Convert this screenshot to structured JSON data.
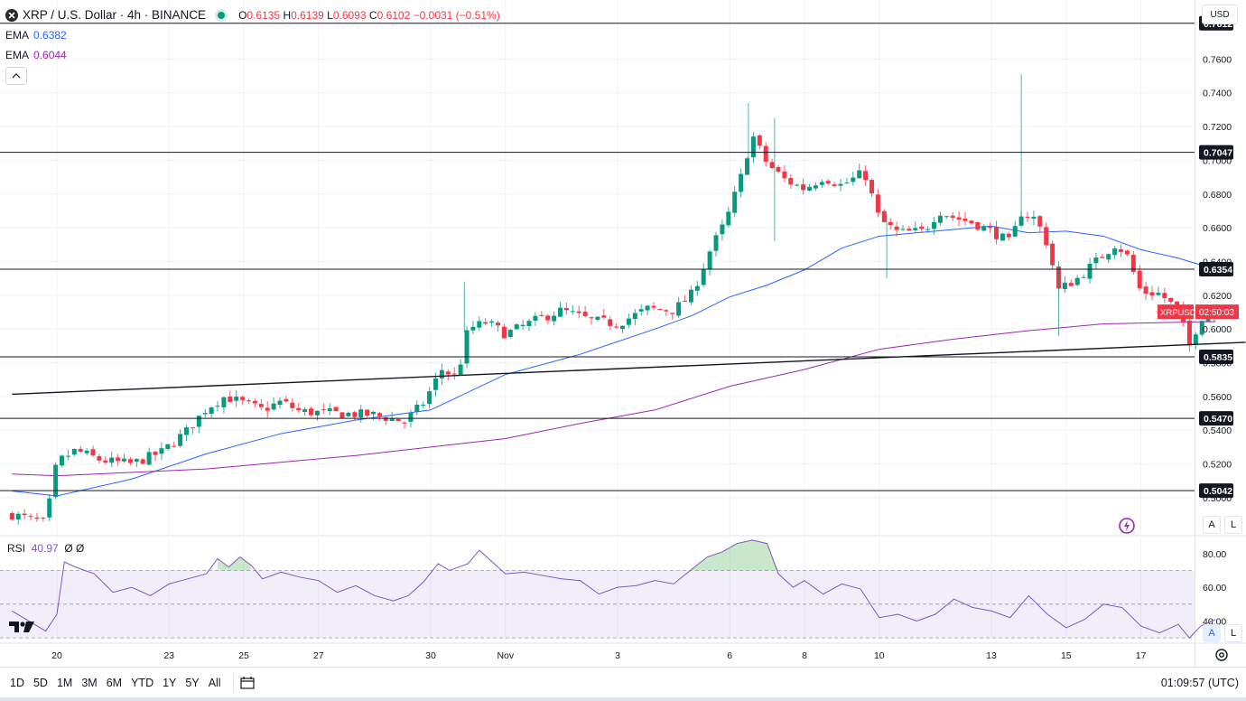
{
  "legend": {
    "symbol": "XRP / U.S. Dollar · 4h · BINANCE",
    "ohlc": {
      "o_label": "O",
      "o": "0.6135",
      "h_label": "H",
      "h": "0.6139",
      "l_label": "L",
      "l": "0.6093",
      "c_label": "C",
      "c": "0.6102",
      "change": "−0.0031 (−0.51%)"
    },
    "ema1": {
      "label": "EMA",
      "value": "0.6382"
    },
    "ema2": {
      "label": "EMA",
      "value": "0.6044"
    }
  },
  "currency": "USD",
  "rsi": {
    "label": "RSI",
    "value": "40.97",
    "extra": "Ø Ø"
  },
  "time_ranges": [
    "1D",
    "5D",
    "1M",
    "3M",
    "6M",
    "YTD",
    "1Y",
    "5Y",
    "All"
  ],
  "clock": "01:09:57 (UTC)",
  "axis_buttons": {
    "auto": "A",
    "log": "L"
  },
  "chart_data": {
    "type": "candlestick",
    "title": "XRP / U.S. Dollar · 4h · BINANCE",
    "ylim": [
      0.478,
      0.795
    ],
    "y_ticks": [
      "0.5000",
      "0.5200",
      "0.5400",
      "0.5600",
      "0.5800",
      "0.6000",
      "0.6200",
      "0.6400",
      "0.6600",
      "0.6800",
      "0.7000",
      "0.7200",
      "0.7400",
      "0.7600"
    ],
    "x_ticks": [
      {
        "label": "20",
        "day": 0
      },
      {
        "label": "23",
        "day": 3
      },
      {
        "label": "25",
        "day": 5
      },
      {
        "label": "27",
        "day": 7
      },
      {
        "label": "30",
        "day": 10
      },
      {
        "label": "Nov",
        "day": 12
      },
      {
        "label": "3",
        "day": 15
      },
      {
        "label": "6",
        "day": 18
      },
      {
        "label": "8",
        "day": 20
      },
      {
        "label": "10",
        "day": 22
      },
      {
        "label": "13",
        "day": 25
      },
      {
        "label": "15",
        "day": 27
      },
      {
        "label": "17",
        "day": 29
      }
    ],
    "horizontal_levels": [
      "0.7812",
      "0.7047",
      "0.6354",
      "0.5835",
      "0.5470",
      "0.5042"
    ],
    "trendline": {
      "start_day": -1.2,
      "start_price": 0.5613,
      "end_day": 31.8,
      "end_price": 0.5921
    },
    "current": {
      "symbol": "XRPUSD",
      "price": 0.6102,
      "countdown": "02:50:03"
    },
    "candle_anchors": [
      [
        -1.2,
        0.49
      ],
      [
        -0.3,
        0.485
      ],
      [
        0.0,
        0.521
      ],
      [
        0.5,
        0.528
      ],
      [
        1.2,
        0.522
      ],
      [
        2.0,
        0.52
      ],
      [
        2.8,
        0.527
      ],
      [
        3.5,
        0.54
      ],
      [
        4.0,
        0.553
      ],
      [
        4.5,
        0.56
      ],
      [
        5.0,
        0.556
      ],
      [
        5.5,
        0.552
      ],
      [
        6.0,
        0.557
      ],
      [
        6.5,
        0.551
      ],
      [
        7.5,
        0.55
      ],
      [
        8.5,
        0.549
      ],
      [
        9.3,
        0.545
      ],
      [
        9.8,
        0.556
      ],
      [
        10.3,
        0.576
      ],
      [
        10.7,
        0.571
      ],
      [
        11.0,
        0.6
      ],
      [
        11.5,
        0.604
      ],
      [
        12.0,
        0.597
      ],
      [
        12.8,
        0.605
      ],
      [
        13.5,
        0.611
      ],
      [
        14.3,
        0.605
      ],
      [
        15.0,
        0.603
      ],
      [
        15.8,
        0.612
      ],
      [
        16.5,
        0.611
      ],
      [
        17.0,
        0.621
      ],
      [
        17.5,
        0.648
      ],
      [
        17.9,
        0.664
      ],
      [
        18.3,
        0.69
      ],
      [
        18.6,
        0.715
      ],
      [
        19.0,
        0.698
      ],
      [
        19.5,
        0.688
      ],
      [
        20.0,
        0.683
      ],
      [
        20.5,
        0.69
      ],
      [
        21.0,
        0.685
      ],
      [
        21.6,
        0.693
      ],
      [
        22.0,
        0.665
      ],
      [
        22.5,
        0.657
      ],
      [
        23.2,
        0.658
      ],
      [
        23.6,
        0.67
      ],
      [
        24.0,
        0.666
      ],
      [
        24.5,
        0.663
      ],
      [
        25.0,
        0.658
      ],
      [
        25.5,
        0.651
      ],
      [
        25.8,
        0.669
      ],
      [
        26.2,
        0.665
      ],
      [
        26.5,
        0.65
      ],
      [
        26.8,
        0.623
      ],
      [
        27.3,
        0.63
      ],
      [
        27.8,
        0.64
      ],
      [
        28.3,
        0.65
      ],
      [
        28.6,
        0.645
      ],
      [
        29.0,
        0.622
      ],
      [
        29.5,
        0.621
      ],
      [
        30.0,
        0.611
      ],
      [
        30.3,
        0.59
      ],
      [
        30.6,
        0.607
      ],
      [
        31.0,
        0.6102
      ]
    ],
    "series": [
      {
        "name": "EMA (blue)",
        "color": "#2962ff",
        "points": [
          [
            -1.2,
            0.504
          ],
          [
            0,
            0.501
          ],
          [
            2,
            0.511
          ],
          [
            4,
            0.526
          ],
          [
            6,
            0.538
          ],
          [
            8,
            0.546
          ],
          [
            10,
            0.552
          ],
          [
            12,
            0.573
          ],
          [
            14,
            0.585
          ],
          [
            16,
            0.6
          ],
          [
            17,
            0.608
          ],
          [
            18,
            0.619
          ],
          [
            19,
            0.626
          ],
          [
            20,
            0.635
          ],
          [
            21,
            0.648
          ],
          [
            22,
            0.655
          ],
          [
            24,
            0.659
          ],
          [
            25,
            0.661
          ],
          [
            26,
            0.657
          ],
          [
            27,
            0.658
          ],
          [
            28,
            0.655
          ],
          [
            29,
            0.647
          ],
          [
            30,
            0.642
          ],
          [
            30.6,
            0.638
          ],
          [
            31.0,
            0.638
          ]
        ]
      },
      {
        "name": "EMA (purple)",
        "color": "#9c27b0",
        "points": [
          [
            -1.2,
            0.514
          ],
          [
            0,
            0.513
          ],
          [
            4,
            0.517
          ],
          [
            8,
            0.525
          ],
          [
            12,
            0.535
          ],
          [
            14,
            0.544
          ],
          [
            16,
            0.552
          ],
          [
            18,
            0.566
          ],
          [
            20,
            0.576
          ],
          [
            22,
            0.588
          ],
          [
            24,
            0.594
          ],
          [
            26,
            0.599
          ],
          [
            28,
            0.603
          ],
          [
            30,
            0.604
          ],
          [
            31.0,
            0.6044
          ]
        ]
      }
    ],
    "rsi": {
      "ylim": [
        29,
        89
      ],
      "y_ticks": [
        "80.00",
        "60.00",
        "40.00"
      ],
      "band": [
        30,
        70
      ],
      "mid": 50,
      "points": [
        [
          -1.2,
          46
        ],
        [
          -0.6,
          38
        ],
        [
          -0.3,
          34
        ],
        [
          0,
          44
        ],
        [
          0.2,
          75
        ],
        [
          0.5,
          72
        ],
        [
          1,
          68
        ],
        [
          1.5,
          57
        ],
        [
          2,
          60
        ],
        [
          2.5,
          55
        ],
        [
          3,
          62
        ],
        [
          3.5,
          65
        ],
        [
          4,
          68
        ],
        [
          4.3,
          77
        ],
        [
          4.6,
          72
        ],
        [
          4.9,
          78
        ],
        [
          5.2,
          73
        ],
        [
          5.5,
          65
        ],
        [
          6,
          69
        ],
        [
          6.5,
          66
        ],
        [
          7,
          64
        ],
        [
          7.5,
          57
        ],
        [
          8,
          61
        ],
        [
          8.5,
          55
        ],
        [
          9,
          52
        ],
        [
          9.4,
          55
        ],
        [
          9.8,
          63
        ],
        [
          10.2,
          74
        ],
        [
          10.5,
          70
        ],
        [
          11,
          74
        ],
        [
          11.3,
          82
        ],
        [
          11.7,
          74
        ],
        [
          12,
          68
        ],
        [
          12.5,
          69
        ],
        [
          13,
          67
        ],
        [
          13.5,
          65
        ],
        [
          14,
          64
        ],
        [
          14.5,
          56
        ],
        [
          15,
          60
        ],
        [
          15.5,
          61
        ],
        [
          16,
          64
        ],
        [
          16.5,
          62
        ],
        [
          17,
          71
        ],
        [
          17.4,
          78
        ],
        [
          17.8,
          81
        ],
        [
          18.2,
          86
        ],
        [
          18.6,
          88
        ],
        [
          19,
          86
        ],
        [
          19.3,
          68
        ],
        [
          19.7,
          60
        ],
        [
          20,
          64
        ],
        [
          20.5,
          56
        ],
        [
          21,
          62
        ],
        [
          21.5,
          59
        ],
        [
          22,
          42
        ],
        [
          22.5,
          44
        ],
        [
          23,
          40
        ],
        [
          23.5,
          44
        ],
        [
          24,
          53
        ],
        [
          24.5,
          48
        ],
        [
          25,
          46
        ],
        [
          25.5,
          42
        ],
        [
          26,
          55
        ],
        [
          26.5,
          44
        ],
        [
          27,
          36
        ],
        [
          27.5,
          41
        ],
        [
          28,
          50
        ],
        [
          28.5,
          48
        ],
        [
          29,
          37
        ],
        [
          29.5,
          33
        ],
        [
          30,
          38
        ],
        [
          30.3,
          30
        ],
        [
          30.6,
          37
        ],
        [
          31.0,
          40.97
        ]
      ]
    }
  }
}
